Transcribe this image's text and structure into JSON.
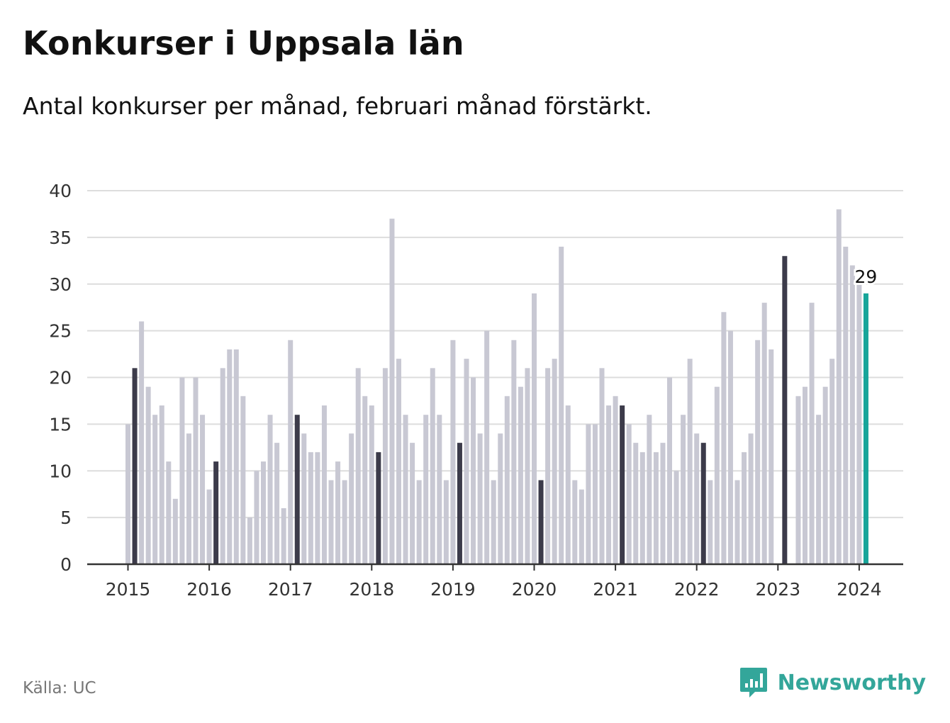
{
  "title": "Konkurser i Uppsala län",
  "subtitle": "Antal konkurser per månad, februari månad förstärkt.",
  "source": "Källa: UC",
  "brand": "Newsworthy",
  "colors": {
    "bar": "#c8c8d3",
    "highlight": "#3c3b4a",
    "latest": "#17a59a",
    "grid": "#dddddd",
    "axis": "#333333",
    "brand": "#33a69a"
  },
  "chart_data": {
    "type": "bar",
    "title": "Konkurser i Uppsala län",
    "subtitle": "Antal konkurser per månad, februari månad förstärkt.",
    "start_month": "2015-01",
    "ylim": [
      0,
      40
    ],
    "yticks": [
      0,
      5,
      10,
      15,
      20,
      25,
      30,
      35,
      40
    ],
    "xticks": [
      "2015",
      "2016",
      "2017",
      "2018",
      "2019",
      "2020",
      "2021",
      "2022",
      "2023",
      "2024"
    ],
    "grid": true,
    "highlight": "February of each year",
    "values": [
      15,
      21,
      26,
      19,
      16,
      17,
      11,
      7,
      20,
      14,
      20,
      16,
      8,
      11,
      21,
      23,
      23,
      18,
      5,
      10,
      11,
      16,
      13,
      6,
      24,
      16,
      14,
      12,
      12,
      17,
      9,
      11,
      9,
      14,
      21,
      18,
      17,
      12,
      21,
      37,
      22,
      16,
      13,
      9,
      16,
      21,
      16,
      9,
      24,
      13,
      22,
      20,
      14,
      25,
      9,
      14,
      18,
      24,
      19,
      21,
      29,
      9,
      21,
      22,
      34,
      17,
      9,
      8,
      15,
      15,
      21,
      17,
      18,
      17,
      15,
      13,
      12,
      16,
      12,
      13,
      20,
      10,
      16,
      22,
      14,
      13,
      9,
      19,
      27,
      25,
      9,
      12,
      14,
      24,
      28,
      23,
      0,
      33,
      0,
      18,
      19,
      28,
      16,
      19,
      22,
      38,
      34,
      32,
      30,
      29
    ],
    "latest_label": "29"
  }
}
